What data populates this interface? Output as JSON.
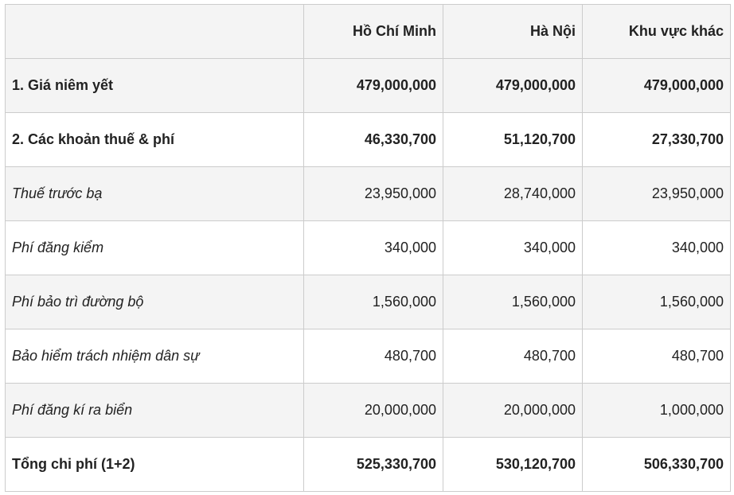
{
  "table": {
    "header": [
      "",
      "Hồ Chí Minh",
      "Hà Nội",
      "Khu vực khác"
    ],
    "rows": [
      [
        "1. Giá niêm yết",
        "479,000,000",
        "479,000,000",
        "479,000,000"
      ],
      [
        "2. Các khoản thuế & phí",
        "46,330,700",
        "51,120,700",
        "27,330,700"
      ],
      [
        "Thuế trước bạ",
        "23,950,000",
        "28,740,000",
        "23,950,000"
      ],
      [
        "Phí đăng kiểm",
        "340,000",
        "340,000",
        "340,000"
      ],
      [
        "Phí bảo trì đường bộ",
        "1,560,000",
        "1,560,000",
        "1,560,000"
      ],
      [
        "Bảo hiểm trách nhiệm dân sự",
        "480,700",
        "480,700",
        "480,700"
      ],
      [
        "Phí đăng kí ra biển",
        "20,000,000",
        "20,000,000",
        "1,000,000"
      ],
      [
        "Tổng chi phí (1+2)",
        "525,330,700",
        "530,120,700",
        "506,330,700"
      ]
    ],
    "bold_rows": [
      0,
      1,
      7
    ],
    "italic_rows": [
      2,
      3,
      4,
      5,
      6
    ]
  }
}
